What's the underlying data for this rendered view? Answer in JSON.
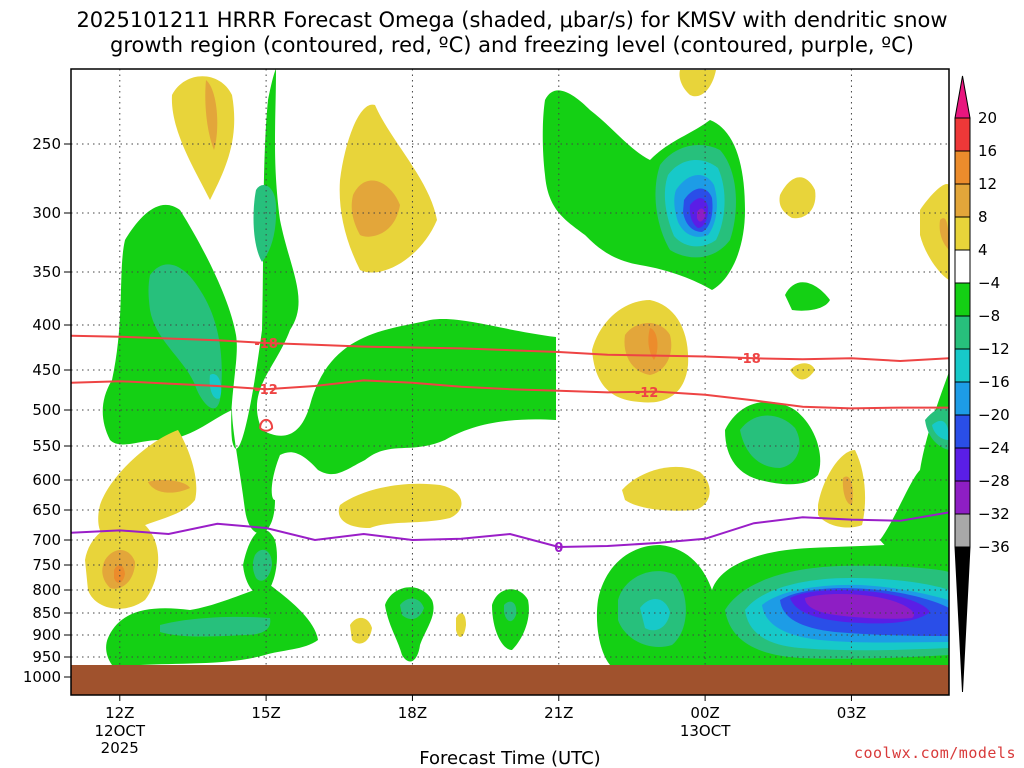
{
  "title_line1": "2025101211 HRRR Forecast Omega (shaded, μbar/s) for KMSV with dendritic snow",
  "title_line2": "growth region (contoured, red, ºC) and freezing level (contoured, purple, ºC)",
  "watermark": "coolwx.com/models",
  "chart_data": {
    "type": "heatmap",
    "title": "2025101211 HRRR Forecast Omega (shaded, μbar/s) for KMSV with dendritic snow growth region (contoured, red, ºC) and freezing level (contoured, purple, ºC)",
    "xlabel": "Forecast Time (UTC)",
    "ylabel": "",
    "x_ticks": [
      {
        "hour": 12,
        "label": "12Z",
        "sub1": "12OCT",
        "sub2": "2025"
      },
      {
        "hour": 15,
        "label": "15Z"
      },
      {
        "hour": 18,
        "label": "18Z"
      },
      {
        "hour": 21,
        "label": "21Z"
      },
      {
        "hour": 24,
        "label": "00Z",
        "sub1": "13OCT"
      },
      {
        "hour": 27,
        "label": "03Z"
      }
    ],
    "xlim_hours": [
      11,
      29
    ],
    "y_ticks": [
      {
        "p": 250,
        "label": "250"
      },
      {
        "p": 300,
        "label": "300"
      },
      {
        "p": 350,
        "label": "350"
      },
      {
        "p": 400,
        "label": "400"
      },
      {
        "p": 450,
        "label": "450"
      },
      {
        "p": 500,
        "label": "500"
      },
      {
        "p": 550,
        "label": "550"
      },
      {
        "p": 600,
        "label": "600"
      },
      {
        "p": 650,
        "label": "650"
      },
      {
        "p": 700,
        "label": "700"
      },
      {
        "p": 750,
        "label": "750"
      },
      {
        "p": 800,
        "label": "800"
      },
      {
        "p": 850,
        "label": "850"
      },
      {
        "p": 900,
        "label": "900"
      },
      {
        "p": 950,
        "label": "950"
      },
      {
        "p": 1000,
        "label": "1000"
      }
    ],
    "ylim_hPa": [
      200,
      1020
    ],
    "surface_pressure_hPa": 975,
    "colorbar": [
      {
        "from": 20,
        "to": 24,
        "color": "#e8167e"
      },
      {
        "from": 16,
        "to": 20,
        "color": "#ee3838"
      },
      {
        "from": 12,
        "to": 16,
        "color": "#ec8c2c"
      },
      {
        "from": 8,
        "to": 12,
        "color": "#e3a63a"
      },
      {
        "from": 4,
        "to": 8,
        "color": "#e8d43a"
      },
      {
        "from": -4,
        "to": 4,
        "color": "#ffffff"
      },
      {
        "from": -8,
        "to": -4,
        "color": "#14d014"
      },
      {
        "from": -12,
        "to": -8,
        "color": "#27c07c"
      },
      {
        "from": -16,
        "to": -12,
        "color": "#17c9c9"
      },
      {
        "from": -20,
        "to": -16,
        "color": "#1d9ce6"
      },
      {
        "from": -24,
        "to": -20,
        "color": "#2a4ee8"
      },
      {
        "from": -28,
        "to": -24,
        "color": "#5a1ee6"
      },
      {
        "from": -32,
        "to": -28,
        "color": "#8e1ec4"
      },
      {
        "from": -36,
        "to": -32,
        "color": "#a8a8a8"
      },
      {
        "from": -40,
        "to": -36,
        "color": "#000000"
      }
    ],
    "colorbar_labels": [
      "20",
      "16",
      "12",
      "8",
      "4",
      "−4",
      "−8",
      "−12",
      "−16",
      "−20",
      "−24",
      "−28",
      "−32",
      "−36"
    ],
    "colorbar_values": [
      20,
      16,
      12,
      8,
      4,
      -4,
      -8,
      -12,
      -16,
      -20,
      -24,
      -28,
      -32,
      -36
    ],
    "contours": [
      {
        "label": "-18",
        "color": "#ee4444",
        "label_hours": [
          15,
          24.9
        ],
        "points": [
          [
            11,
            412
          ],
          [
            12,
            413
          ],
          [
            13,
            415
          ],
          [
            14,
            417
          ],
          [
            15,
            420
          ],
          [
            16,
            422
          ],
          [
            17,
            424
          ],
          [
            18,
            425
          ],
          [
            19,
            426
          ],
          [
            20,
            428
          ],
          [
            21,
            430
          ],
          [
            22,
            433
          ],
          [
            23,
            434
          ],
          [
            24,
            435
          ],
          [
            25,
            437
          ],
          [
            26,
            438
          ],
          [
            27,
            437
          ],
          [
            28,
            440
          ],
          [
            29,
            437
          ]
        ]
      },
      {
        "label": "-12",
        "color": "#ee4444",
        "label_hours": [
          15,
          22.8
        ],
        "points": [
          [
            11,
            466
          ],
          [
            12,
            464
          ],
          [
            13,
            467
          ],
          [
            14,
            470
          ],
          [
            15,
            474
          ],
          [
            16,
            470
          ],
          [
            17,
            463
          ],
          [
            18,
            466
          ],
          [
            19,
            471
          ],
          [
            20,
            474
          ],
          [
            21,
            476
          ],
          [
            22,
            478
          ],
          [
            23,
            477
          ],
          [
            24,
            481
          ],
          [
            25,
            488
          ],
          [
            26,
            496
          ],
          [
            27,
            498
          ],
          [
            28,
            497
          ],
          [
            29,
            497
          ]
        ]
      },
      {
        "label": "0",
        "color": "#9a1ec8",
        "label_hours": [
          21
        ],
        "points": [
          [
            11,
            688
          ],
          [
            12,
            684
          ],
          [
            13,
            690
          ],
          [
            14,
            673
          ],
          [
            15,
            680
          ],
          [
            16,
            700
          ],
          [
            17,
            690
          ],
          [
            18,
            700
          ],
          [
            19,
            698
          ],
          [
            20,
            690
          ],
          [
            21,
            714
          ],
          [
            22,
            712
          ],
          [
            23,
            706
          ],
          [
            24,
            698
          ],
          [
            25,
            672
          ],
          [
            26,
            662
          ],
          [
            27,
            666
          ],
          [
            28,
            668
          ],
          [
            29,
            654
          ]
        ]
      }
    ]
  }
}
